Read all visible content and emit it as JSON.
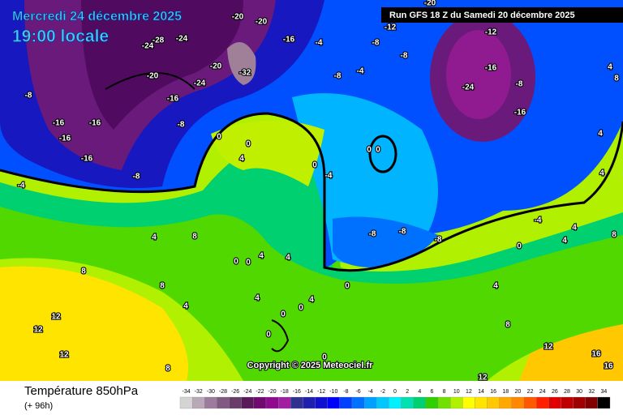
{
  "header": {
    "date": "Mercredi 24 décembre 2025",
    "time": "19:00 locale",
    "run": "Run GFS 18 Z du Samedi 20 décembre 2025"
  },
  "copyright": "Copyright © 2025 Meteociel.fr",
  "legend": {
    "title": "Température 850hPa",
    "lead": "(+ 96h)",
    "ticks": [
      -34,
      -32,
      -30,
      -28,
      -26,
      -24,
      -22,
      -20,
      -18,
      -16,
      -14,
      -12,
      -10,
      -8,
      -6,
      -4,
      -2,
      0,
      2,
      4,
      6,
      8,
      10,
      12,
      14,
      16,
      18,
      20,
      22,
      24,
      26,
      28,
      30,
      32,
      34
    ],
    "colors": [
      "#d4d4d4",
      "#b8a8b8",
      "#9c7c9c",
      "#805a80",
      "#6a3c6a",
      "#5a1a5a",
      "#700a70",
      "#900a90",
      "#a020a0",
      "#303090",
      "#2020b0",
      "#1010d0",
      "#0000ff",
      "#0040ff",
      "#0070ff",
      "#00a0ff",
      "#00c8ff",
      "#00f0ff",
      "#00e0b0",
      "#00d070",
      "#30d000",
      "#70e000",
      "#b0f000",
      "#ffff00",
      "#ffe400",
      "#ffc800",
      "#ffa800",
      "#ff8800",
      "#ff5800",
      "#ff2000",
      "#e00000",
      "#c00000",
      "#a00000",
      "#800000",
      "#000000"
    ]
  },
  "contour_labels": [
    "-24",
    "-28",
    "-24",
    "-20",
    "-20",
    "-20",
    "-16",
    "-20",
    "-32",
    "-24",
    "-16",
    "-8",
    "-8",
    "-16",
    "-16",
    "-16",
    "-16",
    "-8",
    "-4",
    "-12",
    "-8",
    "-8",
    "-4",
    "-8",
    "-4",
    "-20",
    "-12",
    "-16",
    "-24",
    "-16",
    "-8",
    "0",
    "0",
    "4",
    "0",
    "-4",
    "0",
    "0",
    "-8",
    "-8",
    "-8",
    "0",
    "4",
    "8",
    "4",
    "8",
    "8",
    "4",
    "0",
    "0",
    "4",
    "8",
    "4",
    "12",
    "12",
    "12",
    "8",
    "4",
    "0",
    "0",
    "0",
    "4",
    "0",
    "4",
    "8",
    "12",
    "16",
    "16",
    "12",
    "0",
    "4",
    "4",
    "8",
    "4",
    "-4",
    "4"
  ]
}
